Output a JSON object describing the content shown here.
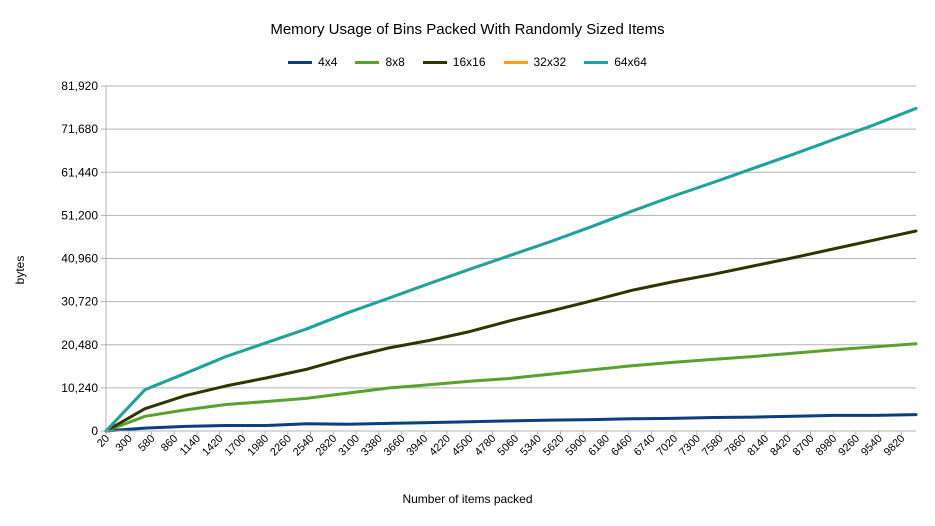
{
  "chart_data": {
    "type": "line",
    "title": "Memory Usage of Bins Packed With Randomly Sized Items",
    "xlabel": "Number of items packed",
    "ylabel": "bytes",
    "x_tick_labels": [
      "20",
      "300",
      "580",
      "860",
      "1140",
      "1420",
      "1700",
      "1980",
      "2260",
      "2540",
      "2820",
      "3100",
      "3380",
      "3660",
      "3940",
      "4220",
      "4500",
      "4780",
      "5060",
      "5340",
      "5620",
      "5900",
      "6180",
      "6460",
      "6740",
      "7020",
      "7300",
      "7580",
      "7860",
      "8140",
      "8420",
      "8700",
      "8980",
      "9260",
      "9540",
      "9820"
    ],
    "x_range": [
      20,
      10000
    ],
    "y_ticks": [
      0,
      10240,
      20480,
      30720,
      40960,
      51200,
      61440,
      71680,
      81920
    ],
    "y_tick_labels": [
      "0",
      "10,240",
      "20,480",
      "30,720",
      "40,960",
      "51,200",
      "61,440",
      "71,680",
      "81,920"
    ],
    "ylim": [
      0,
      81920
    ],
    "grid": "horizontal",
    "legend_position": "top",
    "x": [
      20,
      500,
      1000,
      1500,
      2000,
      2500,
      3000,
      3500,
      4000,
      4500,
      5000,
      5500,
      6000,
      6500,
      7000,
      7500,
      8000,
      8500,
      9000,
      9500,
      10000
    ],
    "series": [
      {
        "name": "4x4",
        "color": "#0b3f7f",
        "values": [
          0,
          700,
          1100,
          1300,
          1300,
          1700,
          1600,
          1800,
          2000,
          2200,
          2400,
          2600,
          2700,
          2900,
          3000,
          3200,
          3300,
          3500,
          3700,
          3700,
          3900
        ]
      },
      {
        "name": "8x8",
        "color": "#5aa02c",
        "values": [
          0,
          3500,
          5000,
          6300,
          7000,
          7800,
          9000,
          10200,
          11000,
          11800,
          12500,
          13500,
          14500,
          15500,
          16300,
          17000,
          17700,
          18500,
          19300,
          20000,
          20700
        ]
      },
      {
        "name": "16x16",
        "color": "#333300",
        "values": [
          0,
          5300,
          8400,
          10700,
          12600,
          14700,
          17400,
          19700,
          21500,
          23600,
          26200,
          28500,
          30900,
          33400,
          35400,
          37200,
          39200,
          41200,
          43300,
          45400,
          47500
        ]
      },
      {
        "name": "32x32",
        "color": "#ff9f19",
        "values": [
          0,
          9800,
          13700,
          17700,
          21000,
          24300,
          28100,
          31500,
          35000,
          38400,
          41700,
          45000,
          48500,
          52200,
          55700,
          59000,
          62400,
          65800,
          69300,
          72800,
          76600
        ]
      },
      {
        "name": "64x64",
        "color": "#1ca3a3",
        "values": [
          0,
          9800,
          13700,
          17700,
          21000,
          24300,
          28100,
          31500,
          35000,
          38400,
          41700,
          45000,
          48500,
          52200,
          55700,
          59000,
          62400,
          65800,
          69300,
          72800,
          76600
        ]
      }
    ]
  }
}
